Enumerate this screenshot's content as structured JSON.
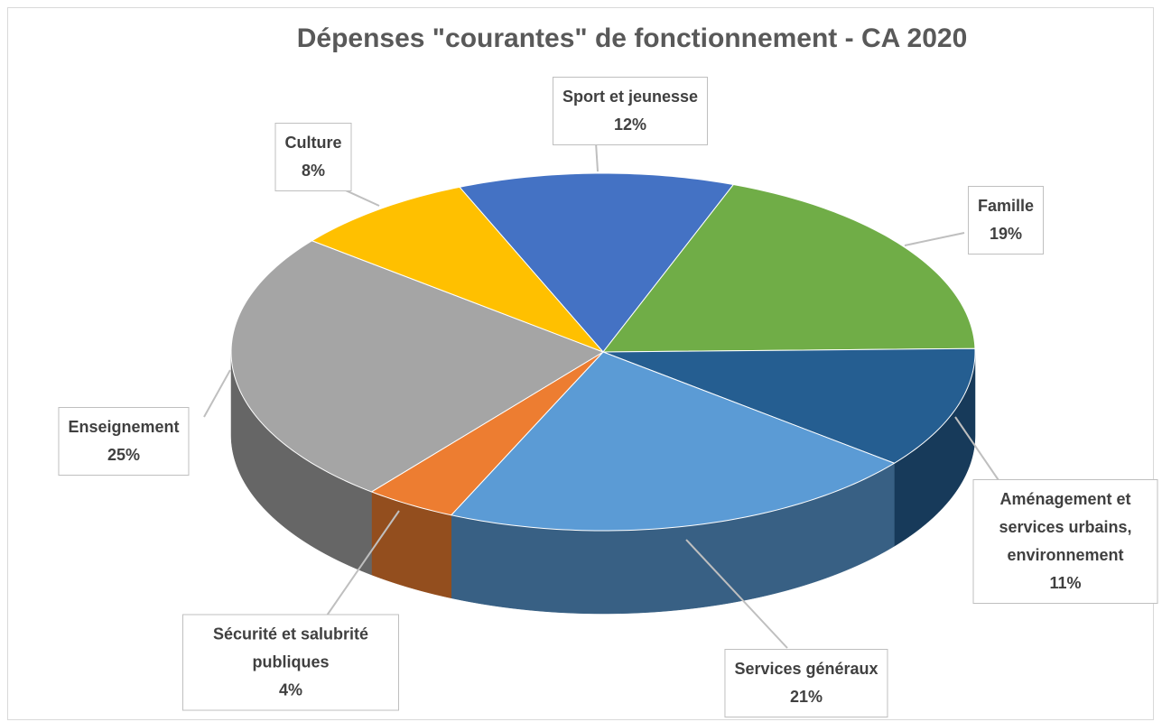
{
  "chart_data": {
    "type": "pie3d",
    "title": "Dépenses \"courantes\" de fonctionnement - CA 2020",
    "categories": [
      "Sport et jeunesse",
      "Famille",
      "Aménagement et services urbains, environnement",
      "Services généraux",
      "Sécurité et salubrité publiques",
      "Enseignement",
      "Culture"
    ],
    "values": [
      12,
      19,
      11,
      21,
      4,
      25,
      8
    ],
    "value_labels": [
      "12%",
      "19%",
      "11%",
      "21%",
      "4%",
      "25%",
      "8%"
    ],
    "colors": [
      "#4472c4",
      "#70ad47",
      "#255e91",
      "#5b9bd5",
      "#ed7d31",
      "#a5a5a5",
      "#ffc000"
    ]
  }
}
